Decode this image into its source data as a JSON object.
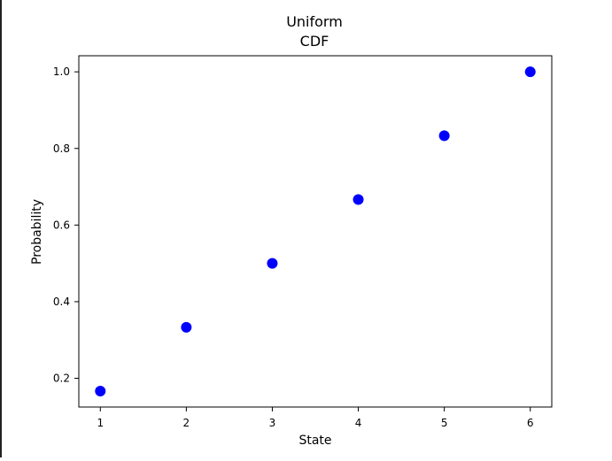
{
  "chart_data": {
    "type": "scatter",
    "title": "Uniform",
    "subtitle": "CDF",
    "xlabel": "State",
    "ylabel": "Probability",
    "x": [
      1,
      2,
      3,
      4,
      5,
      6
    ],
    "y": [
      0.1667,
      0.3333,
      0.5,
      0.6667,
      0.8333,
      1.0
    ],
    "xlim": [
      0.75,
      6.25
    ],
    "ylim": [
      0.125,
      1.042
    ],
    "xticks": [
      1,
      2,
      3,
      4,
      5,
      6
    ],
    "xtick_labels": [
      "1",
      "2",
      "3",
      "4",
      "5",
      "6"
    ],
    "yticks": [
      0.2,
      0.4,
      0.6,
      0.8,
      1.0
    ],
    "ytick_labels": [
      "0.2",
      "0.4",
      "0.6",
      "0.8",
      "1.0"
    ],
    "marker_color": "#0000ff",
    "grid": false,
    "legend": false
  }
}
